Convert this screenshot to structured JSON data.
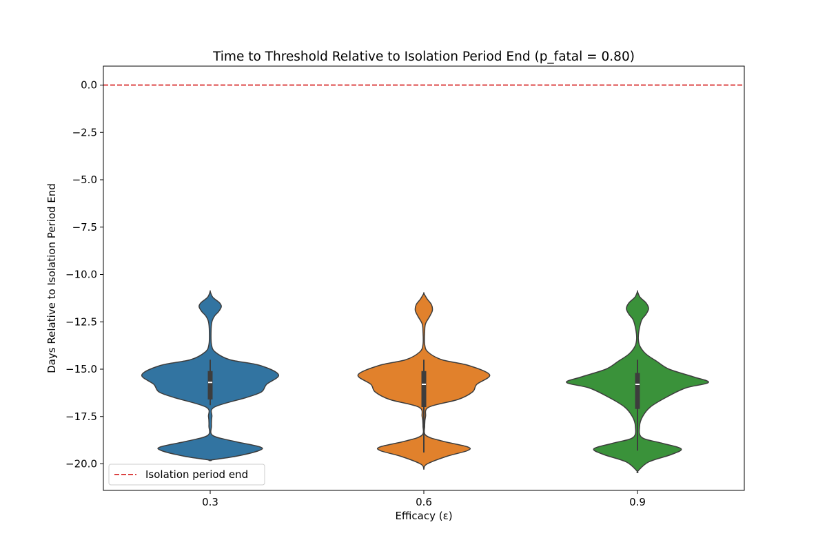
{
  "chart_data": {
    "type": "violin",
    "title": "Time to Threshold Relative to Isolation Period End (p_fatal = 0.80)",
    "xlabel": "Efficacy (ε)",
    "ylabel": "Days Relative to Isolation Period End",
    "ylim": [
      -21.4,
      1.0
    ],
    "yticks": [
      "0.0",
      "−2.5",
      "−5.0",
      "−7.5",
      "−10.0",
      "−12.5",
      "−15.0",
      "−17.5",
      "−20.0"
    ],
    "ytick_values": [
      0,
      -2.5,
      -5,
      -7.5,
      -10,
      -12.5,
      -15,
      -17.5,
      -20
    ],
    "categories": [
      "0.3",
      "0.6",
      "0.9"
    ],
    "reference_line": {
      "y": 0,
      "label": "Isolation period end",
      "color": "#d62728",
      "style": "dashed"
    },
    "legend": {
      "position": "lower-left"
    },
    "grid": false,
    "series": [
      {
        "category": "0.3",
        "color": "#3274a1",
        "median": -15.7,
        "q1": -16.6,
        "q3": -15.1,
        "whisker_low": -16.9,
        "whisker_high": -14.5,
        "profile": [
          [
            -10.9,
            0
          ],
          [
            -11.2,
            0.03
          ],
          [
            -11.5,
            0.11
          ],
          [
            -11.7,
            0.13
          ],
          [
            -11.95,
            0.1
          ],
          [
            -12.2,
            0.05
          ],
          [
            -12.5,
            0.02
          ],
          [
            -13.0,
            0.01
          ],
          [
            -13.7,
            0.015
          ],
          [
            -14.1,
            0.06
          ],
          [
            -14.5,
            0.23
          ],
          [
            -14.8,
            0.58
          ],
          [
            -15.3,
            0.8
          ],
          [
            -15.8,
            0.66
          ],
          [
            -16.2,
            0.6
          ],
          [
            -16.5,
            0.42
          ],
          [
            -17.0,
            0.05
          ],
          [
            -17.5,
            0.02
          ],
          [
            -18.0,
            0.015
          ],
          [
            -18.5,
            0.03
          ],
          [
            -18.8,
            0.27
          ],
          [
            -19.1,
            0.58
          ],
          [
            -19.3,
            0.57
          ],
          [
            -19.6,
            0.3
          ],
          [
            -19.8,
            0
          ]
        ]
      },
      {
        "category": "0.6",
        "color": "#e1812c",
        "median": -15.8,
        "q1": -17.0,
        "q3": -15.1,
        "whisker_low": -19.4,
        "whisker_high": -14.5,
        "profile": [
          [
            -11.0,
            0
          ],
          [
            -11.3,
            0.04
          ],
          [
            -11.6,
            0.09
          ],
          [
            -11.9,
            0.1
          ],
          [
            -12.2,
            0.07
          ],
          [
            -12.6,
            0.02
          ],
          [
            -13.0,
            0.01
          ],
          [
            -13.7,
            0.01
          ],
          [
            -14.1,
            0.05
          ],
          [
            -14.5,
            0.21
          ],
          [
            -14.8,
            0.52
          ],
          [
            -15.3,
            0.77
          ],
          [
            -15.8,
            0.62
          ],
          [
            -16.2,
            0.57
          ],
          [
            -16.6,
            0.4
          ],
          [
            -17.0,
            0.06
          ],
          [
            -17.5,
            0.02
          ],
          [
            -18.0,
            0.01
          ],
          [
            -18.5,
            0.025
          ],
          [
            -18.8,
            0.22
          ],
          [
            -19.1,
            0.51
          ],
          [
            -19.3,
            0.51
          ],
          [
            -19.6,
            0.27
          ],
          [
            -20.0,
            0.04
          ],
          [
            -20.25,
            0
          ]
        ]
      },
      {
        "category": "0.9",
        "color": "#3a923a",
        "median": -15.8,
        "q1": -17.1,
        "q3": -15.2,
        "whisker_low": -19.3,
        "whisker_high": -14.5,
        "profile": [
          [
            -10.9,
            0
          ],
          [
            -11.2,
            0.03
          ],
          [
            -11.5,
            0.1
          ],
          [
            -11.8,
            0.13
          ],
          [
            -12.1,
            0.1
          ],
          [
            -12.4,
            0.05
          ],
          [
            -12.9,
            0.02
          ],
          [
            -13.4,
            0.01
          ],
          [
            -13.8,
            0.03
          ],
          [
            -14.2,
            0.1
          ],
          [
            -14.6,
            0.23
          ],
          [
            -15.0,
            0.37
          ],
          [
            -15.4,
            0.65
          ],
          [
            -15.7,
            0.83
          ],
          [
            -16.0,
            0.56
          ],
          [
            -16.5,
            0.33
          ],
          [
            -17.0,
            0.15
          ],
          [
            -17.5,
            0.06
          ],
          [
            -18.0,
            0.025
          ],
          [
            -18.6,
            0.05
          ],
          [
            -18.9,
            0.28
          ],
          [
            -19.2,
            0.51
          ],
          [
            -19.5,
            0.4
          ],
          [
            -19.9,
            0.13
          ],
          [
            -20.4,
            0
          ]
        ]
      }
    ]
  }
}
